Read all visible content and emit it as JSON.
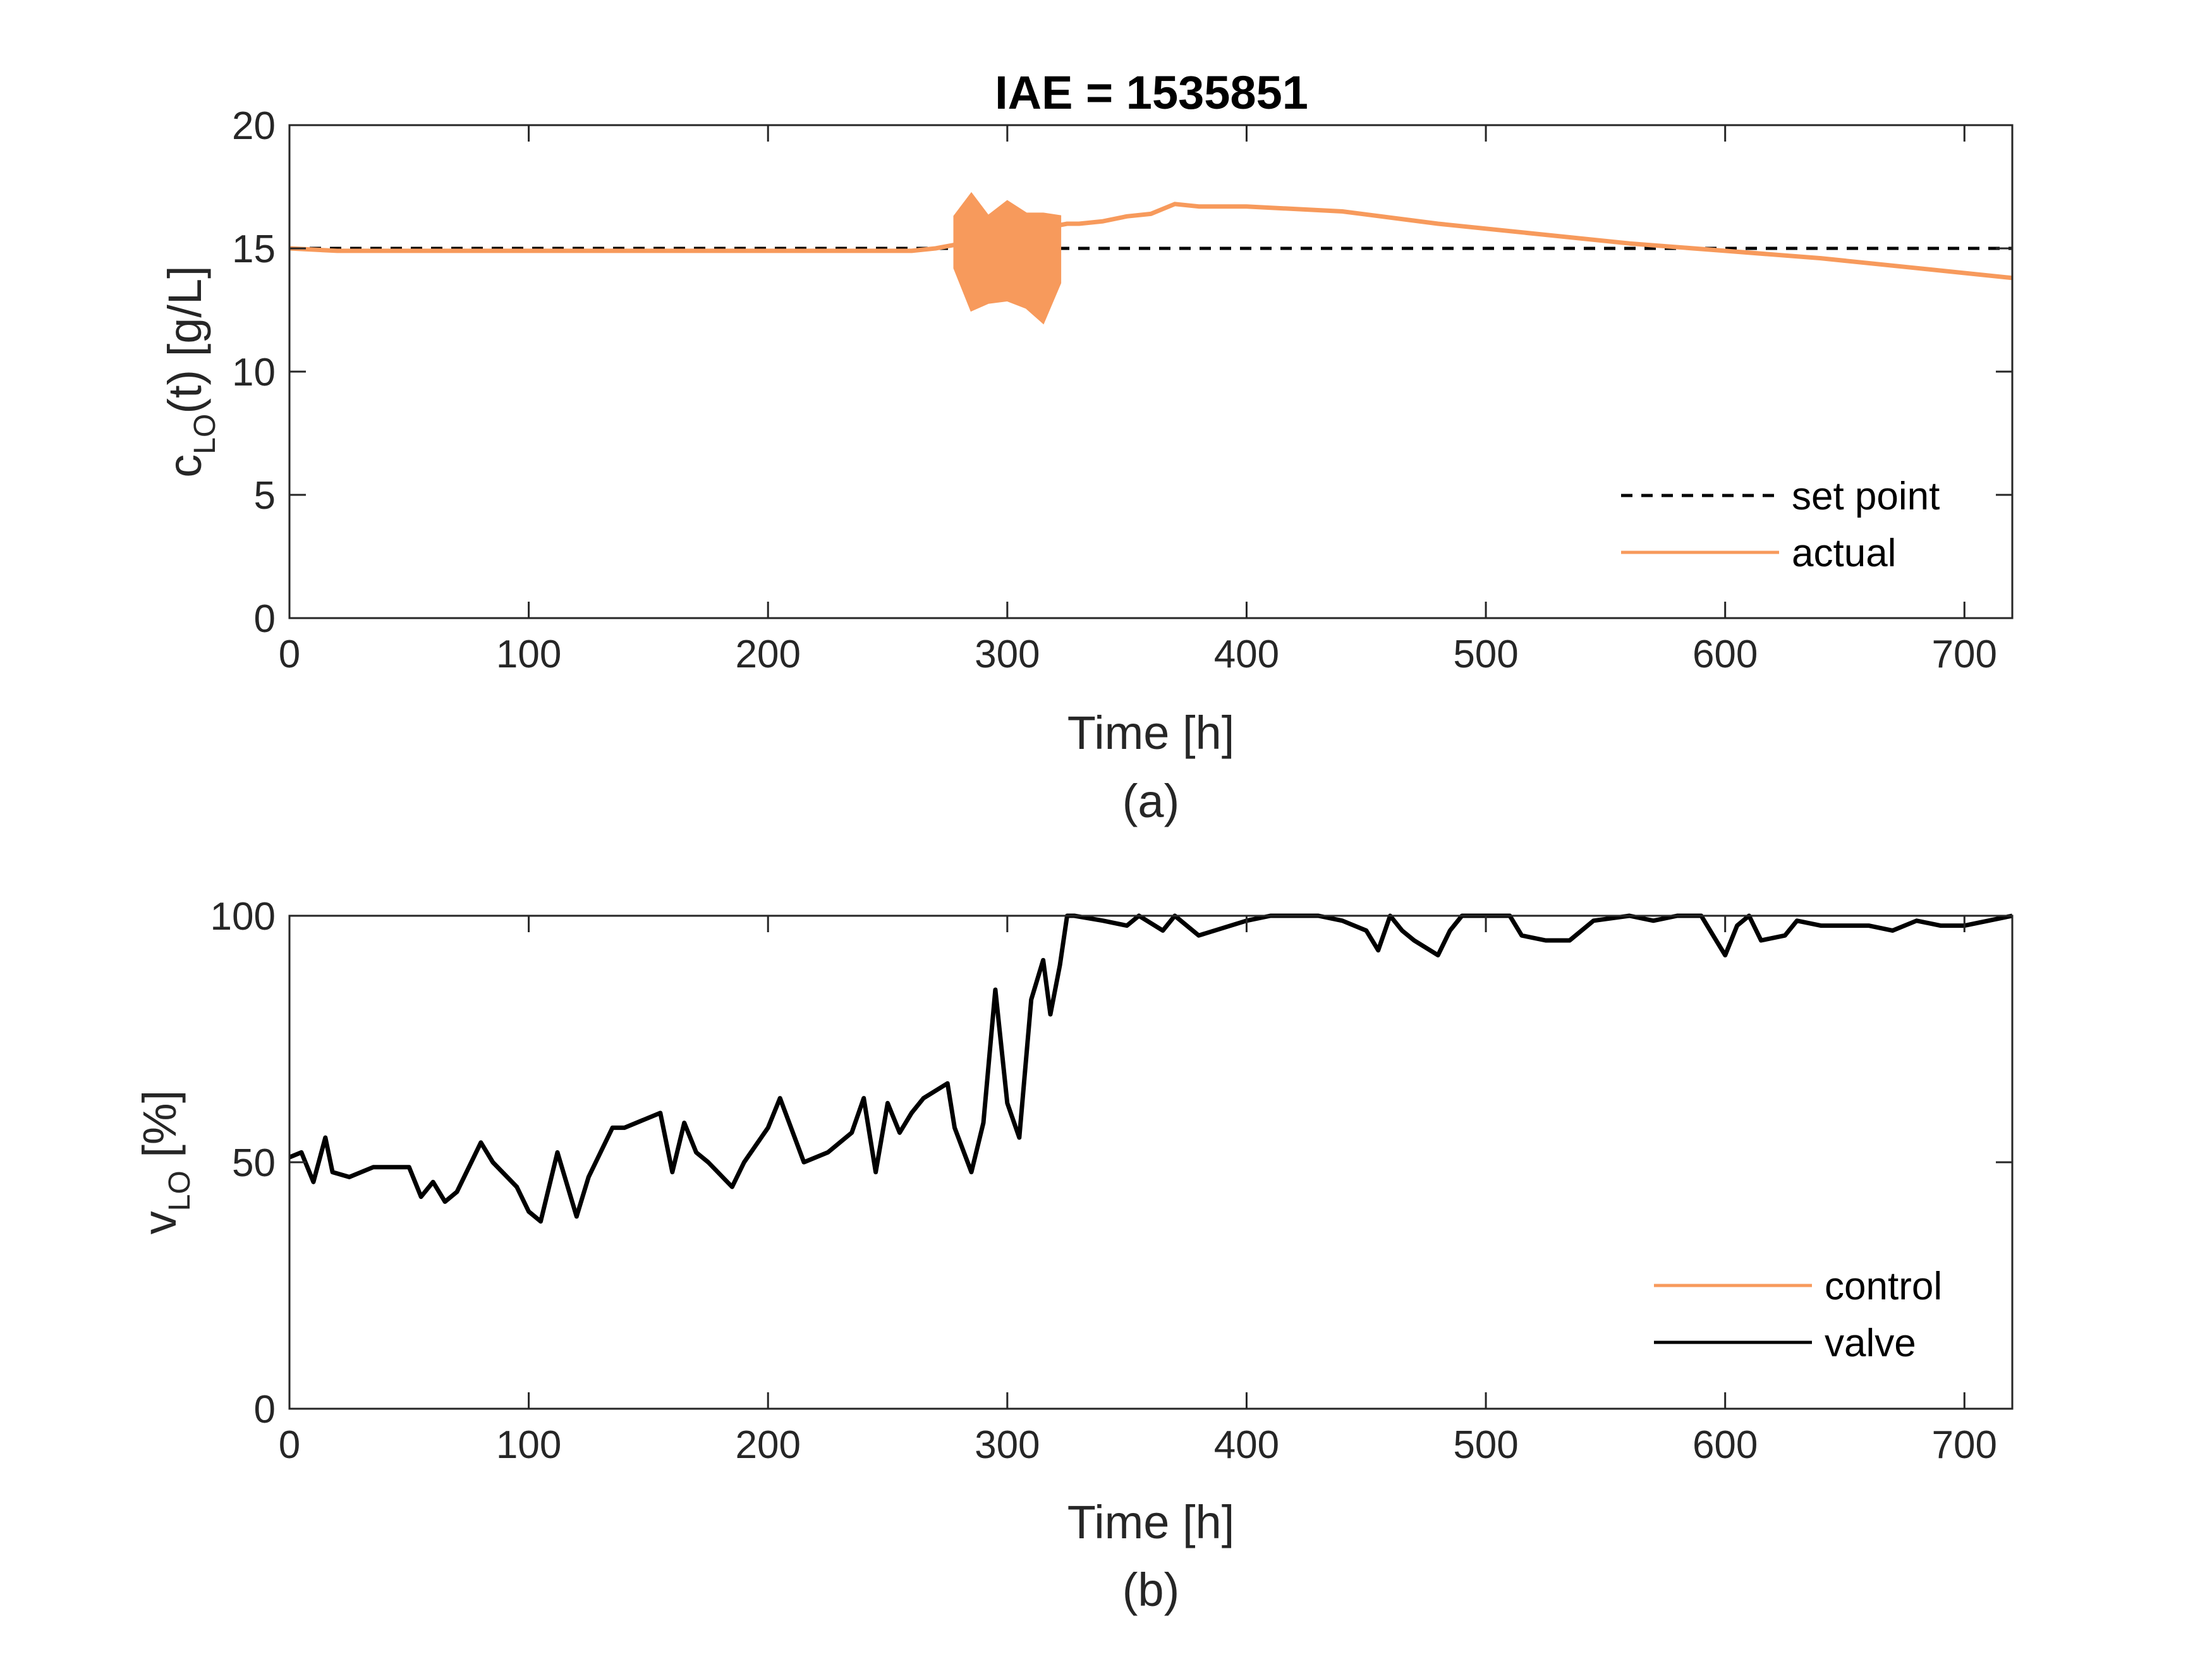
{
  "colors": {
    "actual": "#f79a5c",
    "setpoint": "#000000",
    "control": "#f79a5c",
    "valve": "#000000",
    "axis": "#262626"
  },
  "chart_data": [
    {
      "type": "line",
      "title": "IAE = 1535851",
      "caption": "(a)",
      "xlabel": "Time [h]",
      "ylabel": {
        "main": "c",
        "sub": "LO",
        "rest": "(t) [g/L]"
      },
      "xlim": [
        0,
        720
      ],
      "ylim": [
        0,
        20
      ],
      "xticks": [
        "0",
        "100",
        "200",
        "300",
        "400",
        "500",
        "600",
        "700"
      ],
      "yticks": [
        "0",
        "5",
        "10",
        "15",
        "20"
      ],
      "legend_position": "bottom-right",
      "grid": false,
      "series": [
        {
          "name": "set point",
          "style": "dashed",
          "x": [
            0,
            720
          ],
          "y": [
            15,
            15
          ]
        },
        {
          "name": "actual",
          "style": "solid",
          "x": [
            0,
            20,
            40,
            60,
            80,
            100,
            120,
            140,
            160,
            180,
            200,
            220,
            240,
            260,
            270,
            325,
            330,
            340,
            350,
            360,
            370,
            380,
            400,
            440,
            480,
            520,
            560,
            600,
            640,
            680,
            720
          ],
          "y": [
            15.0,
            14.9,
            14.9,
            14.9,
            14.9,
            14.9,
            14.9,
            14.9,
            14.9,
            14.9,
            14.9,
            14.9,
            14.9,
            14.9,
            15.0,
            16.0,
            16.0,
            16.1,
            16.3,
            16.4,
            16.8,
            16.7,
            16.7,
            16.5,
            16.0,
            15.6,
            15.2,
            14.9,
            14.6,
            14.2,
            13.8
          ],
          "oscillation": {
            "x": [
              278,
              285,
              292,
              300,
              308,
              315,
              322
            ],
            "upper": [
              16.3,
              17.2,
              16.3,
              16.9,
              16.4,
              16.4,
              16.3
            ],
            "lower": [
              14.2,
              12.5,
              12.8,
              12.9,
              12.6,
              12.0,
              13.6
            ]
          }
        }
      ]
    },
    {
      "type": "line",
      "caption": "(b)",
      "xlabel": "Time [h]",
      "ylabel": {
        "main": "v",
        "sub": "LO",
        "rest": " [%]"
      },
      "xlim": [
        0,
        720
      ],
      "ylim": [
        0,
        100
      ],
      "xticks": [
        "0",
        "100",
        "200",
        "300",
        "400",
        "500",
        "600",
        "700"
      ],
      "yticks": [
        "0",
        "50",
        "100"
      ],
      "legend_position": "bottom-right",
      "grid": false,
      "series": [
        {
          "name": "control",
          "style": "solid",
          "x": [],
          "y": []
        },
        {
          "name": "valve",
          "style": "solid",
          "x": [
            0,
            5,
            10,
            15,
            18,
            25,
            35,
            50,
            55,
            60,
            65,
            70,
            80,
            85,
            95,
            100,
            105,
            112,
            120,
            125,
            135,
            140,
            155,
            160,
            165,
            170,
            175,
            185,
            190,
            200,
            205,
            215,
            225,
            235,
            240,
            245,
            250,
            255,
            260,
            265,
            275,
            278,
            285,
            290,
            295,
            300,
            305,
            310,
            315,
            318,
            322,
            325,
            328,
            340,
            350,
            355,
            365,
            370,
            380,
            400,
            410,
            420,
            430,
            440,
            450,
            455,
            460,
            465,
            470,
            480,
            485,
            490,
            500,
            510,
            515,
            525,
            535,
            545,
            560,
            570,
            580,
            590,
            595,
            600,
            605,
            610,
            615,
            625,
            630,
            640,
            650,
            660,
            670,
            680,
            690,
            700,
            710,
            720
          ],
          "y": [
            51,
            52,
            46,
            55,
            48,
            47,
            49,
            49,
            43,
            46,
            42,
            44,
            54,
            50,
            45,
            40,
            38,
            52,
            39,
            47,
            57,
            57,
            60,
            48,
            58,
            52,
            50,
            45,
            50,
            57,
            63,
            50,
            52,
            56,
            63,
            48,
            62,
            56,
            60,
            63,
            66,
            57,
            48,
            58,
            85,
            62,
            55,
            83,
            91,
            80,
            90,
            100,
            100,
            99,
            98,
            100,
            97,
            100,
            96,
            99,
            100,
            100,
            100,
            99,
            97,
            93,
            100,
            97,
            95,
            92,
            97,
            100,
            100,
            100,
            96,
            95,
            95,
            99,
            100,
            99,
            100,
            100,
            96,
            92,
            98,
            100,
            95,
            96,
            99,
            98,
            98,
            98,
            97,
            99,
            98,
            98,
            99,
            100
          ]
        }
      ]
    }
  ]
}
